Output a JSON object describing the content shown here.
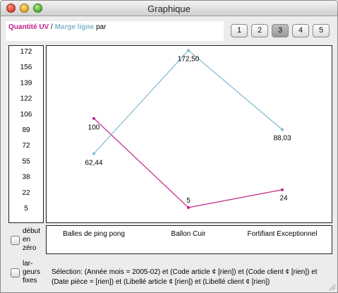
{
  "window": {
    "title": "Graphique"
  },
  "legend": {
    "series1": "Quantité UV",
    "separator": "/",
    "series2": "Marge ligne",
    "suffix": "par"
  },
  "pages": [
    {
      "label": "1",
      "active": false
    },
    {
      "label": "2",
      "active": false
    },
    {
      "label": "3",
      "active": true
    },
    {
      "label": "4",
      "active": false
    },
    {
      "label": "5",
      "active": false
    }
  ],
  "options": {
    "start_zero": "début en zéro",
    "fixed_widths": "lar-geurs fixes"
  },
  "status": "Sélection:  (Année mois = 2005-02) et (Code article ¢ [rien]) et (Code client ¢ [rien]) et (Date pièce = [rien]) et (Libellé article ¢ [rien]) et (Libellé client ¢ [rien])",
  "colors": {
    "series1": "#c0208a",
    "series2": "#7fb8cf"
  },
  "chart_data": {
    "type": "line",
    "categories": [
      "Balles de ping pong",
      "Ballon Cuir",
      "Fortifiant Exceptionnel"
    ],
    "y_ticks": [
      "172",
      "156",
      "139",
      "122",
      "106",
      "89",
      "72",
      "55",
      "38",
      "22",
      "5"
    ],
    "ylim": [
      5,
      172
    ],
    "series": [
      {
        "name": "Quantité UV",
        "color": "#c0208a",
        "values": [
          100,
          5,
          24
        ],
        "labels": [
          "100",
          "5",
          "24"
        ]
      },
      {
        "name": "Marge ligne",
        "color": "#7fb8cf",
        "values": [
          62.44,
          172.5,
          88.03
        ],
        "labels": [
          "62,44",
          "172,50",
          "88,03"
        ]
      }
    ]
  }
}
